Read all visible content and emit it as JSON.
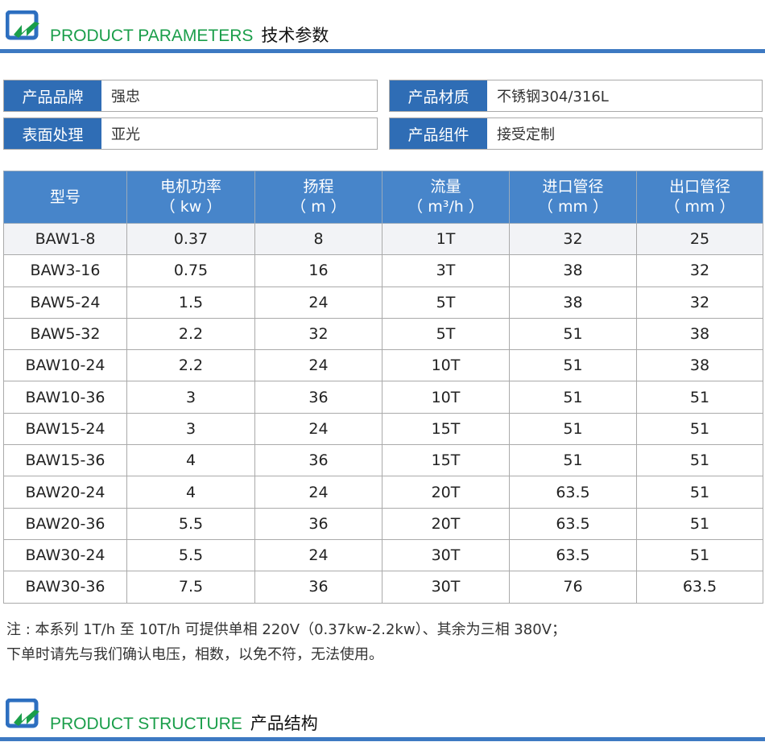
{
  "section1": {
    "title_en": "PRODUCT PARAMETERS",
    "title_cn": "技术参数"
  },
  "info": [
    {
      "label": "产品品牌",
      "value": "强忠"
    },
    {
      "label": "产品材质",
      "value": "不锈钢304/316L"
    },
    {
      "label": "表面处理",
      "value": "亚光"
    },
    {
      "label": "产品组件",
      "value": "接受定制"
    }
  ],
  "table": {
    "headers": [
      [
        "型号",
        ""
      ],
      [
        "电机功率",
        "（ kw ）"
      ],
      [
        "扬程",
        "（ m ）"
      ],
      [
        "流量",
        "（ m³/h ）"
      ],
      [
        "进口管径",
        "（ mm ）"
      ],
      [
        "出口管径",
        "（ mm ）"
      ]
    ],
    "rows": [
      [
        "BAW1-8",
        "0.37",
        "8",
        "1T",
        "32",
        "25"
      ],
      [
        "BAW3-16",
        "0.75",
        "16",
        "3T",
        "38",
        "32"
      ],
      [
        "BAW5-24",
        "1.5",
        "24",
        "5T",
        "38",
        "32"
      ],
      [
        "BAW5-32",
        "2.2",
        "32",
        "5T",
        "51",
        "38"
      ],
      [
        "BAW10-24",
        "2.2",
        "24",
        "10T",
        "51",
        "38"
      ],
      [
        "BAW10-36",
        "3",
        "36",
        "10T",
        "51",
        "51"
      ],
      [
        "BAW15-24",
        "3",
        "24",
        "15T",
        "51",
        "51"
      ],
      [
        "BAW15-36",
        "4",
        "36",
        "15T",
        "51",
        "51"
      ],
      [
        "BAW20-24",
        "4",
        "24",
        "20T",
        "63.5",
        "51"
      ],
      [
        "BAW20-36",
        "5.5",
        "36",
        "20T",
        "63.5",
        "51"
      ],
      [
        "BAW30-24",
        "5.5",
        "24",
        "30T",
        "63.5",
        "51"
      ],
      [
        "BAW30-36",
        "7.5",
        "36",
        "30T",
        "76",
        "63.5"
      ]
    ]
  },
  "note": {
    "line1": "注 : 本系列 1T/h 至 10T/h 可提供单相 220V（0.37kw-2.2kw）、其余为三相 380V；",
    "line2": "下单时请先与我们确认电压，相数，以免不符，无法使用。"
  },
  "section2": {
    "title_en": "PRODUCT STRUCTURE",
    "title_cn": "产品结构"
  },
  "colors": {
    "brand_blue": "#3d79c2",
    "green": "#1a9e4a",
    "header_blue": "#4785ca"
  }
}
